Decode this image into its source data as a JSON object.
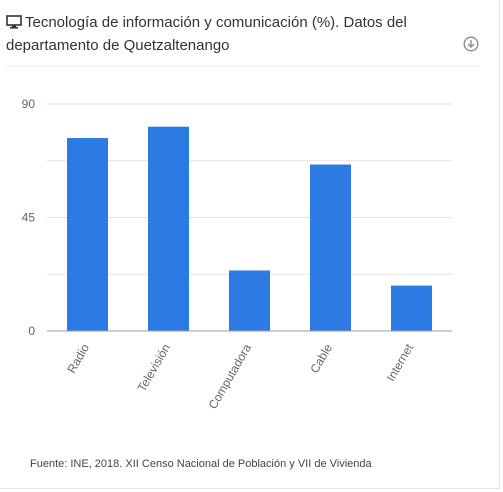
{
  "header": {
    "title": "Tecnología de información y comunicación (%). Datos del departamento de Quetzaltenango",
    "icon": "monitor-icon",
    "download_icon": "download-icon"
  },
  "source": "Fuente: INE, 2018. XII Censo Nacional de Población y VII de Vivienda",
  "colors": {
    "bar": "#2c7be5",
    "grid": "#e3e3e3",
    "axis": "#9e9e9e",
    "text": "#666666"
  },
  "chart_data": {
    "type": "bar",
    "categories": [
      "Radio",
      "Televisión",
      "Computadora",
      "Cable",
      "Internet"
    ],
    "values": [
      76.5,
      81,
      24,
      66,
      18
    ],
    "yticks": [
      0,
      45,
      90
    ],
    "ylim": [
      0,
      90
    ],
    "grid": true,
    "legend": "none"
  }
}
